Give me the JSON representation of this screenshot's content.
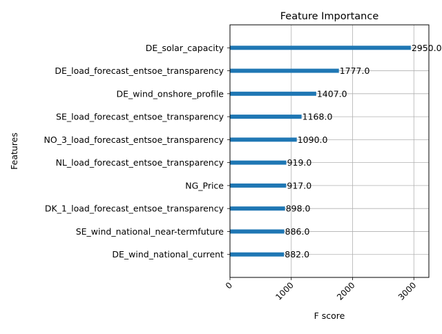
{
  "chart_data": {
    "type": "bar",
    "orientation": "horizontal",
    "title": "Feature Importance",
    "xlabel": "F score",
    "ylabel": "Features",
    "categories": [
      "DE_solar_capacity",
      "DE_load_forecast_entsoe_transparency",
      "DE_wind_onshore_profile",
      "SE_load_forecast_entsoe_transparency",
      "NO_3_load_forecast_entsoe_transparency",
      "NL_load_forecast_entsoe_transparency",
      "NG_Price",
      "DK_1_load_forecast_entsoe_transparency",
      "SE_wind_national_near-termfuture",
      "DE_wind_national_current"
    ],
    "values": [
      2950.0,
      1777.0,
      1407.0,
      1168.0,
      1090.0,
      919.0,
      917.0,
      898.0,
      886.0,
      882.0
    ],
    "value_labels": [
      "2950.0",
      "1777.0",
      "1407.0",
      "1168.0",
      "1090.0",
      "919.0",
      "917.0",
      "898.0",
      "886.0",
      "882.0"
    ],
    "xticks": [
      0,
      1000,
      2000,
      3000
    ],
    "xtick_labels": [
      "0",
      "1000",
      "2000",
      "3000"
    ],
    "xlim": [
      0,
      3245
    ],
    "grid": true,
    "bar_color": "#1f77b4"
  }
}
